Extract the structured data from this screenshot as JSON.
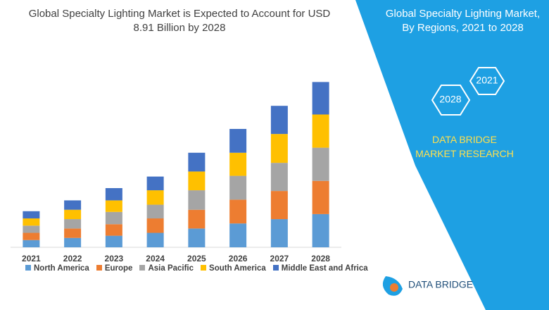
{
  "chart_data": {
    "type": "stacked_bar",
    "title": "Global Specialty Lighting Market is Expected to Account for USD 8.91 Billion by 2028",
    "categories": [
      "2021",
      "2022",
      "2023",
      "2024",
      "2025",
      "2026",
      "2027",
      "2028"
    ],
    "series": [
      {
        "name": "North America",
        "color": "#5b9bd5",
        "values": [
          10,
          13,
          16,
          20,
          26,
          33,
          39,
          46
        ]
      },
      {
        "name": "Europe",
        "color": "#ed7d31",
        "values": [
          10,
          13,
          16,
          20,
          26,
          33,
          39,
          46
        ]
      },
      {
        "name": "Asia Pacific",
        "color": "#a5a5a5",
        "values": [
          10,
          13,
          17,
          19,
          27,
          33,
          39,
          46
        ]
      },
      {
        "name": "South America",
        "color": "#ffc000",
        "values": [
          10,
          13,
          16,
          20,
          26,
          32,
          40,
          46
        ]
      },
      {
        "name": "Middle East and Africa",
        "color": "#4472c4",
        "values": [
          10,
          13,
          17,
          19,
          26,
          33,
          39,
          45
        ]
      }
    ],
    "ylim": [
      0,
      245
    ]
  },
  "panel": {
    "title": "Global Specialty Lighting Market, By Regions, 2021 to 2028",
    "hex_labels": [
      "2021",
      "2028"
    ],
    "brand": "DATA BRIDGE MARKET RESEARCH",
    "logo": "DATA BRIDGE"
  }
}
